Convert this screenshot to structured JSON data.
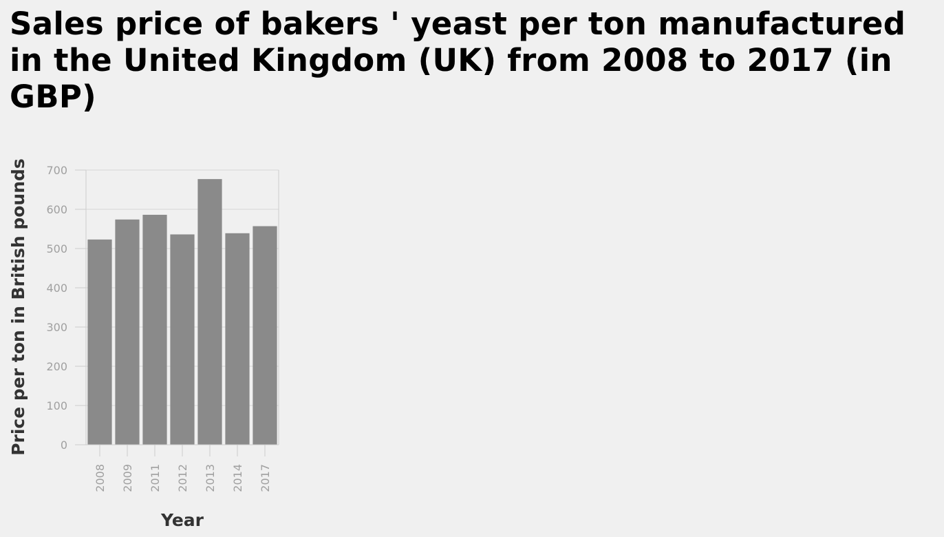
{
  "chart_data": {
    "type": "bar",
    "title": "Sales price of bakers ' yeast per ton manufactured in the United Kingdom (UK) from 2008 to 2017 (in GBP)",
    "xlabel": "Year",
    "ylabel": "Price per ton in British pounds",
    "categories": [
      "2008",
      "2009",
      "2011",
      "2012",
      "2013",
      "2014",
      "2017"
    ],
    "values": [
      523,
      574,
      586,
      536,
      677,
      539,
      557
    ],
    "ylim": [
      0,
      700
    ],
    "yticks": [
      0,
      100,
      200,
      300,
      400,
      500,
      600,
      700
    ],
    "grid": true,
    "legend": "none",
    "colors": {
      "bar": "#8a8a8a",
      "grid": "#d6d6d6",
      "axis": "#cccccc",
      "background": "#f0f0f0"
    }
  }
}
